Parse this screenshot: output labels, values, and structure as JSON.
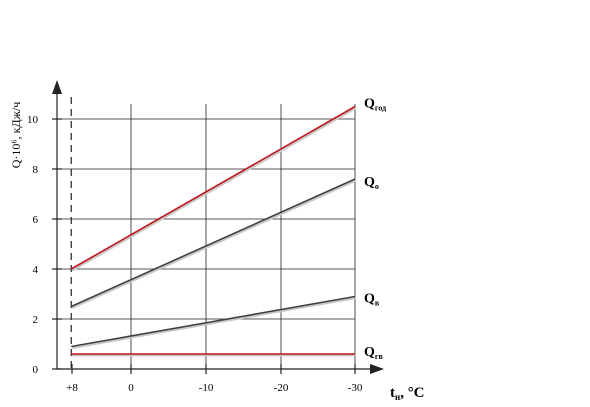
{
  "chart_data": {
    "type": "line",
    "title": "",
    "ylabel": "Q·10⁶, кДж/ч",
    "xlabel_main": "t",
    "xlabel_sub": "н",
    "xlabel_unit": ", °С",
    "x_ticks": [
      "+8",
      "0",
      "-10",
      "-20",
      "-30"
    ],
    "y_ticks": [
      "0",
      "2",
      "4",
      "6",
      "8",
      "10"
    ],
    "xlim": [
      8,
      -30
    ],
    "ylim": [
      0,
      11
    ],
    "grid": true,
    "reference_line_x": 8,
    "series": [
      {
        "name": "Q",
        "sub": "год",
        "color": "#c0141b",
        "x": [
          8,
          -30
        ],
        "y": [
          4.0,
          10.5
        ]
      },
      {
        "name": "Q",
        "sub": "о",
        "color": "#404040",
        "x": [
          8,
          -30
        ],
        "y": [
          2.5,
          7.6
        ]
      },
      {
        "name": "Q",
        "sub": "в",
        "color": "#404040",
        "x": [
          8,
          -30
        ],
        "y": [
          0.9,
          2.9
        ]
      },
      {
        "name": "Q",
        "sub": "гв",
        "color": "#c0141b",
        "x": [
          8,
          -30
        ],
        "y": [
          0.6,
          0.6
        ]
      }
    ]
  }
}
